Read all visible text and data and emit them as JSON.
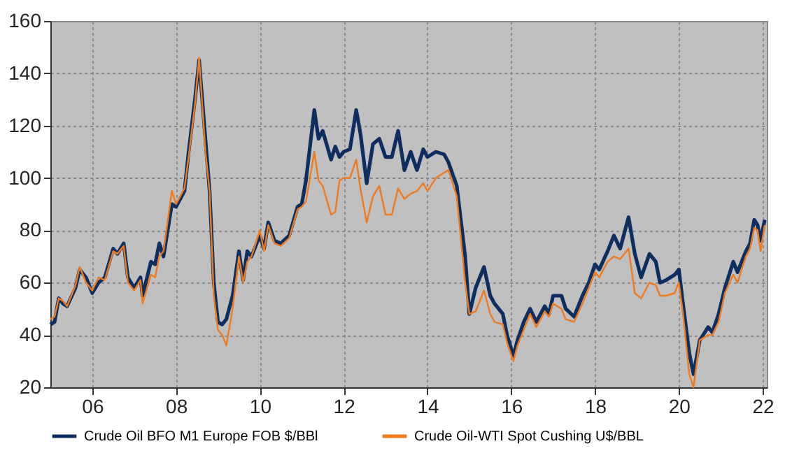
{
  "chart_data": {
    "type": "line",
    "xlim": [
      2005,
      2022.1
    ],
    "ylim": [
      20,
      160
    ],
    "xticks": [
      {
        "value": 2006,
        "label": "06"
      },
      {
        "value": 2008,
        "label": "08"
      },
      {
        "value": 2010,
        "label": "10"
      },
      {
        "value": 2012,
        "label": "12"
      },
      {
        "value": 2014,
        "label": "14"
      },
      {
        "value": 2016,
        "label": "16"
      },
      {
        "value": 2018,
        "label": "18"
      },
      {
        "value": 2020,
        "label": "20"
      },
      {
        "value": 2022,
        "label": "22"
      }
    ],
    "yticks": [
      20,
      40,
      60,
      80,
      100,
      120,
      140,
      160
    ],
    "grid": true,
    "legend": "bottom",
    "series": [
      {
        "name": "Crude Oil BFO M1 Europe FOB $/BBl",
        "color": "#0d2e5e",
        "x": [
          2005.0,
          2005.1,
          2005.2,
          2005.3,
          2005.4,
          2005.6,
          2005.7,
          2005.85,
          2006.0,
          2006.15,
          2006.3,
          2006.5,
          2006.6,
          2006.75,
          2006.85,
          2007.0,
          2007.15,
          2007.2,
          2007.4,
          2007.5,
          2007.6,
          2007.7,
          2007.9,
          2008.0,
          2008.2,
          2008.3,
          2008.45,
          2008.55,
          2008.7,
          2008.8,
          2008.9,
          2009.0,
          2009.1,
          2009.2,
          2009.35,
          2009.5,
          2009.6,
          2009.7,
          2009.8,
          2010.0,
          2010.1,
          2010.2,
          2010.35,
          2010.5,
          2010.7,
          2010.9,
          2011.0,
          2011.1,
          2011.3,
          2011.4,
          2011.5,
          2011.7,
          2011.8,
          2011.9,
          2012.0,
          2012.15,
          2012.3,
          2012.4,
          2012.55,
          2012.7,
          2012.85,
          2013.0,
          2013.15,
          2013.3,
          2013.45,
          2013.6,
          2013.75,
          2013.9,
          2014.0,
          2014.2,
          2014.4,
          2014.5,
          2014.7,
          2014.9,
          2015.0,
          2015.15,
          2015.35,
          2015.5,
          2015.6,
          2015.8,
          2015.9,
          2016.05,
          2016.15,
          2016.3,
          2016.45,
          2016.6,
          2016.8,
          2016.9,
          2017.0,
          2017.2,
          2017.3,
          2017.5,
          2017.7,
          2017.85,
          2018.0,
          2018.1,
          2018.3,
          2018.45,
          2018.6,
          2018.8,
          2018.95,
          2019.1,
          2019.3,
          2019.45,
          2019.55,
          2019.7,
          2019.9,
          2020.0,
          2020.1,
          2020.25,
          2020.35,
          2020.5,
          2020.7,
          2020.8,
          2020.95,
          2021.1,
          2021.3,
          2021.4,
          2021.6,
          2021.7,
          2021.8,
          2021.88,
          2021.95,
          2022.05
        ],
        "values": [
          44,
          45,
          54,
          52,
          51,
          58,
          65,
          62,
          56,
          60,
          62,
          73,
          71,
          75,
          62,
          58,
          62,
          55,
          68,
          67,
          75,
          70,
          90,
          89,
          95,
          110,
          130,
          145,
          115,
          95,
          60,
          45,
          44,
          46,
          55,
          72,
          61,
          72,
          70,
          78,
          73,
          83,
          76,
          75,
          78,
          89,
          90,
          99,
          126,
          115,
          118,
          107,
          112,
          108,
          110,
          111,
          126,
          117,
          98,
          113,
          115,
          108,
          108,
          118,
          103,
          110,
          103,
          111,
          108,
          110,
          109,
          106,
          97,
          70,
          48,
          58,
          66,
          55,
          52,
          48,
          40,
          32,
          38,
          45,
          50,
          45,
          51,
          48,
          55,
          55,
          50,
          47,
          55,
          60,
          67,
          65,
          72,
          78,
          73,
          85,
          71,
          62,
          71,
          68,
          60,
          61,
          63,
          65,
          52,
          33,
          25,
          38,
          43,
          41,
          48,
          58,
          68,
          64,
          72,
          75,
          84,
          82,
          76,
          84
        ]
      },
      {
        "name": "Crude Oil-WTI Spot Cushing U$/BBL",
        "color": "#f07a1e",
        "x": [
          2005.0,
          2005.1,
          2005.2,
          2005.3,
          2005.4,
          2005.6,
          2005.7,
          2005.85,
          2006.0,
          2006.15,
          2006.3,
          2006.5,
          2006.6,
          2006.75,
          2006.85,
          2007.0,
          2007.15,
          2007.2,
          2007.4,
          2007.5,
          2007.6,
          2007.7,
          2007.9,
          2008.0,
          2008.2,
          2008.3,
          2008.45,
          2008.55,
          2008.7,
          2008.8,
          2008.9,
          2009.0,
          2009.1,
          2009.2,
          2009.35,
          2009.5,
          2009.6,
          2009.7,
          2009.8,
          2010.0,
          2010.1,
          2010.2,
          2010.35,
          2010.5,
          2010.7,
          2010.9,
          2011.0,
          2011.1,
          2011.3,
          2011.4,
          2011.5,
          2011.7,
          2011.8,
          2011.9,
          2012.0,
          2012.15,
          2012.3,
          2012.4,
          2012.55,
          2012.7,
          2012.85,
          2013.0,
          2013.15,
          2013.3,
          2013.45,
          2013.6,
          2013.75,
          2013.9,
          2014.0,
          2014.2,
          2014.4,
          2014.5,
          2014.7,
          2014.9,
          2015.0,
          2015.15,
          2015.35,
          2015.5,
          2015.6,
          2015.8,
          2015.9,
          2016.05,
          2016.15,
          2016.3,
          2016.45,
          2016.6,
          2016.8,
          2016.9,
          2017.0,
          2017.2,
          2017.3,
          2017.5,
          2017.7,
          2017.85,
          2018.0,
          2018.1,
          2018.3,
          2018.45,
          2018.6,
          2018.8,
          2018.95,
          2019.1,
          2019.3,
          2019.45,
          2019.55,
          2019.7,
          2019.9,
          2020.0,
          2020.1,
          2020.25,
          2020.35,
          2020.5,
          2020.7,
          2020.8,
          2020.95,
          2021.1,
          2021.3,
          2021.4,
          2021.6,
          2021.7,
          2021.8,
          2021.88,
          2021.95,
          2022.05
        ],
        "values": [
          46,
          47,
          54,
          53,
          51,
          59,
          66,
          60,
          57,
          62,
          61,
          72,
          71,
          74,
          60,
          57,
          61,
          52,
          63,
          62,
          70,
          72,
          95,
          90,
          96,
          108,
          128,
          146,
          110,
          95,
          55,
          42,
          40,
          36,
          50,
          70,
          60,
          68,
          70,
          80,
          72,
          82,
          75,
          74,
          77,
          88,
          89,
          91,
          110,
          99,
          97,
          86,
          87,
          99,
          100,
          100,
          107,
          96,
          83,
          93,
          97,
          86,
          86,
          96,
          92,
          94,
          95,
          98,
          95,
          100,
          102,
          103,
          93,
          60,
          48,
          49,
          57,
          48,
          45,
          44,
          37,
          30,
          36,
          42,
          48,
          43,
          49,
          47,
          52,
          50,
          46,
          45,
          52,
          58,
          64,
          62,
          68,
          70,
          69,
          73,
          56,
          54,
          60,
          59,
          55,
          55,
          56,
          60,
          48,
          25,
          20,
          38,
          40,
          40,
          45,
          56,
          63,
          60,
          70,
          73,
          81,
          80,
          72,
          82
        ]
      }
    ]
  }
}
